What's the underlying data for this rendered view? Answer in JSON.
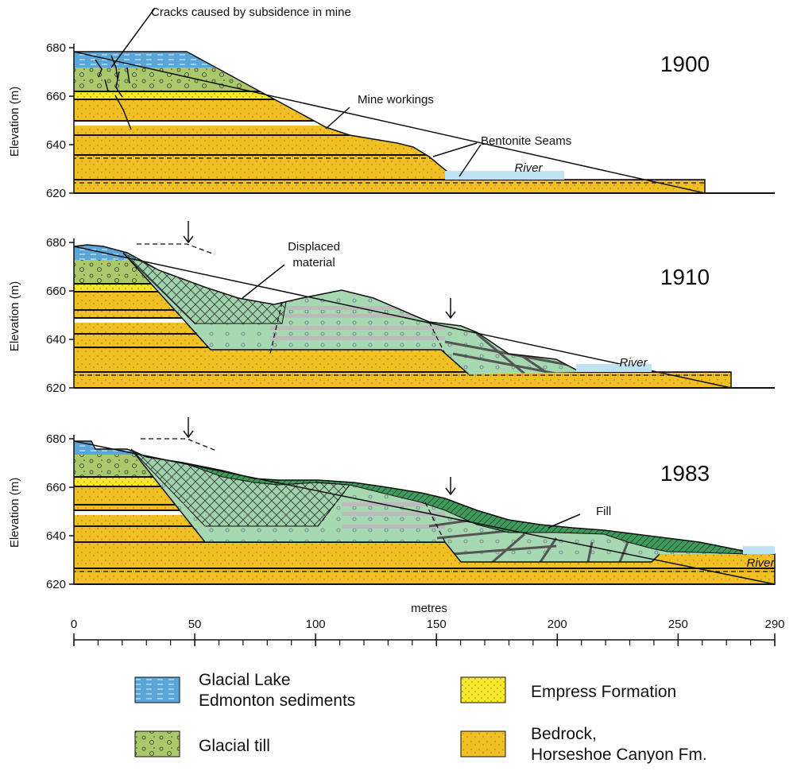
{
  "panels": [
    {
      "year": "1900",
      "y_axis_label": "Elevation (m)",
      "yticks": [
        620,
        640,
        660,
        680
      ],
      "river": "River",
      "annotations": [
        "Cracks caused by subsidence in mine",
        "Mine workings",
        "Bentonite Seams"
      ]
    },
    {
      "year": "1910",
      "y_axis_label": "Elevation (m)",
      "yticks": [
        620,
        640,
        660,
        680
      ],
      "river": "River",
      "annotations": [
        [
          "Displaced",
          "material"
        ]
      ]
    },
    {
      "year": "1983",
      "y_axis_label": "Elevation (m)",
      "yticks": [
        620,
        640,
        660,
        680
      ],
      "river": "River",
      "annotations": [
        "Fill"
      ]
    }
  ],
  "x_axis": {
    "label": "metres",
    "ticks": [
      0,
      50,
      100,
      150,
      200,
      250,
      290
    ]
  },
  "legend": [
    {
      "label": [
        "Glacial Lake",
        "Edmonton sediments"
      ]
    },
    {
      "label": [
        "Empress Formation"
      ]
    },
    {
      "label": [
        "Glacial till"
      ]
    },
    {
      "label": [
        "Bedrock,",
        "Horseshoe Canyon Fm."
      ]
    }
  ]
}
